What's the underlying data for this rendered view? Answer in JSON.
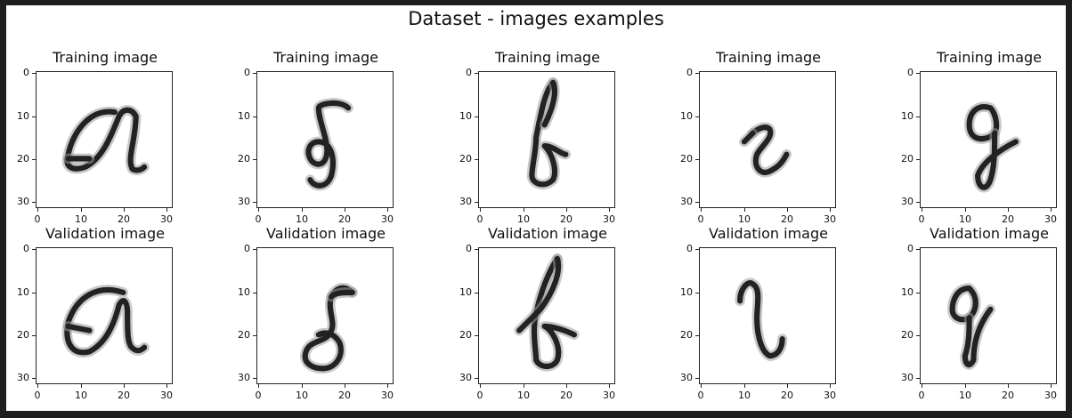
{
  "figure": {
    "suptitle": "Dataset - images examples"
  },
  "axes": {
    "ticks": [
      "0",
      "10",
      "20",
      "30"
    ],
    "tick_values": [
      0,
      10,
      20,
      30
    ],
    "extent": [
      -0.5,
      31.5
    ]
  },
  "panels": [
    {
      "title": "Training image",
      "glyph": "a",
      "row": 0,
      "col": 0
    },
    {
      "title": "Training image",
      "glyph": "δ",
      "row": 0,
      "col": 1
    },
    {
      "title": "Training image",
      "glyph": "b",
      "row": 0,
      "col": 2
    },
    {
      "title": "Training image",
      "glyph": "r",
      "row": 0,
      "col": 3
    },
    {
      "title": "Training image",
      "glyph": "g",
      "row": 0,
      "col": 4
    },
    {
      "title": "Validation image",
      "glyph": "a",
      "row": 1,
      "col": 0
    },
    {
      "title": "Validation image",
      "glyph": "δ",
      "row": 1,
      "col": 1
    },
    {
      "title": "Validation image",
      "glyph": "b",
      "row": 1,
      "col": 2
    },
    {
      "title": "Validation image",
      "glyph": "l",
      "row": 1,
      "col": 3
    },
    {
      "title": "Validation image",
      "glyph": "g",
      "row": 1,
      "col": 4
    }
  ],
  "colors": {
    "ink": "#222222",
    "background": "#ffffff",
    "frame": "#1e1e1e"
  }
}
